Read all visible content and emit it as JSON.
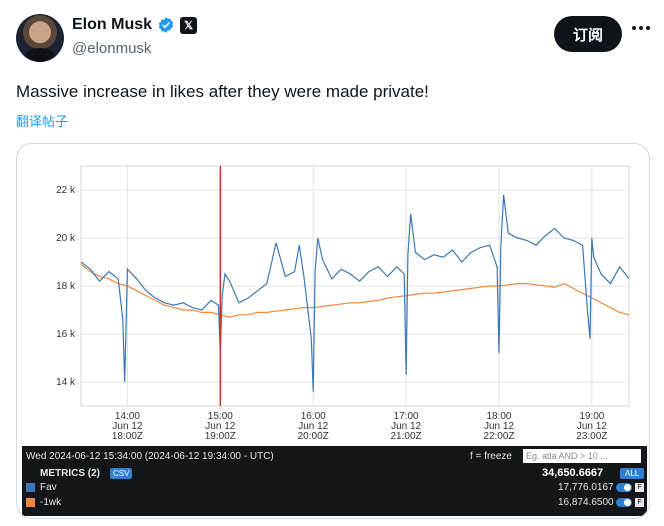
{
  "author": {
    "display_name": "Elon Musk",
    "handle": "@elonmusk",
    "verified_icon": "verified-badge-icon",
    "affiliation_icon": "x-logo-icon",
    "affiliation_badge_text": "𝕏"
  },
  "actions": {
    "follow_label": "订阅",
    "more_icon": "more-horizontal-icon"
  },
  "post": {
    "text": "Massive increase in likes after they were made private!",
    "translate_label": "翻译帖子"
  },
  "colors": {
    "fav_series": "#3a78b5",
    "prev_week_series": "#f0883e",
    "marker_line": "#c0392b",
    "follow_button_bg": "#0f1419",
    "link": "#1d9bf0"
  },
  "chart_data": {
    "type": "line",
    "ylim": [
      13000,
      23000
    ],
    "y_ticks": [
      14000,
      16000,
      18000,
      20000,
      22000
    ],
    "y_tick_labels": [
      "14 k",
      "16 k",
      "18 k",
      "20 k",
      "22 k"
    ],
    "x_ticks": [
      {
        "time": "14:00",
        "date": "Jun 12",
        "utc": "18:00Z"
      },
      {
        "time": "15:00",
        "date": "Jun 12",
        "utc": "19:00Z"
      },
      {
        "time": "16:00",
        "date": "Jun 12",
        "utc": "20:00Z"
      },
      {
        "time": "17:00",
        "date": "Jun 12",
        "utc": "21:00Z"
      },
      {
        "time": "18:00",
        "date": "Jun 12",
        "utc": "22:00Z"
      },
      {
        "time": "19:00",
        "date": "Jun 12",
        "utc": "23:00Z"
      }
    ],
    "x_range_hours": [
      13.5,
      19.4
    ],
    "marker_time_hours": 15.0,
    "grid": true,
    "series": [
      {
        "name": "Fav",
        "x": [
          13.5,
          13.6,
          13.7,
          13.8,
          13.9,
          13.95,
          13.97,
          14.0,
          14.1,
          14.2,
          14.3,
          14.4,
          14.5,
          14.6,
          14.7,
          14.8,
          14.9,
          14.98,
          15.0,
          15.02,
          15.05,
          15.1,
          15.2,
          15.3,
          15.4,
          15.5,
          15.6,
          15.7,
          15.8,
          15.85,
          15.9,
          15.98,
          16.0,
          16.02,
          16.05,
          16.1,
          16.2,
          16.3,
          16.4,
          16.5,
          16.6,
          16.7,
          16.8,
          16.9,
          16.98,
          17.0,
          17.02,
          17.05,
          17.1,
          17.2,
          17.3,
          17.4,
          17.5,
          17.6,
          17.7,
          17.8,
          17.9,
          17.98,
          18.0,
          18.02,
          18.05,
          18.1,
          18.2,
          18.3,
          18.4,
          18.5,
          18.6,
          18.7,
          18.8,
          18.9,
          18.95,
          18.98,
          19.0,
          19.02,
          19.1,
          19.2,
          19.3,
          19.4
        ],
        "values": [
          19000,
          18700,
          18200,
          18600,
          18300,
          16600,
          14000,
          18700,
          18300,
          17800,
          17500,
          17300,
          17200,
          17300,
          17100,
          17000,
          17400,
          17200,
          15200,
          17600,
          18500,
          18200,
          17300,
          17500,
          17800,
          18100,
          19800,
          18400,
          18600,
          19700,
          18400,
          15800,
          13600,
          18600,
          20000,
          19100,
          18300,
          18700,
          18500,
          18200,
          18600,
          18800,
          18400,
          18800,
          18500,
          14300,
          19300,
          21000,
          19400,
          19100,
          19300,
          19200,
          19500,
          19000,
          19400,
          19600,
          19700,
          18800,
          15200,
          19600,
          21800,
          20200,
          20000,
          19900,
          19700,
          20100,
          20400,
          20000,
          19900,
          19700,
          17100,
          15800,
          20000,
          19200,
          18500,
          18100,
          18800,
          18300
        ]
      },
      {
        "name": "-1wk",
        "x": [
          13.5,
          13.6,
          13.7,
          13.8,
          13.9,
          14.0,
          14.1,
          14.2,
          14.3,
          14.4,
          14.5,
          14.6,
          14.7,
          14.8,
          14.9,
          15.0,
          15.1,
          15.2,
          15.3,
          15.4,
          15.5,
          15.6,
          15.7,
          15.8,
          15.9,
          16.0,
          16.1,
          16.2,
          16.3,
          16.4,
          16.5,
          16.6,
          16.7,
          16.8,
          16.9,
          17.0,
          17.1,
          17.2,
          17.3,
          17.4,
          17.5,
          17.6,
          17.7,
          17.8,
          17.9,
          18.0,
          18.1,
          18.2,
          18.3,
          18.4,
          18.5,
          18.6,
          18.7,
          18.8,
          18.9,
          19.0,
          19.1,
          19.2,
          19.3,
          19.4
        ],
        "values": [
          18900,
          18600,
          18400,
          18300,
          18100,
          18000,
          17800,
          17600,
          17400,
          17200,
          17100,
          17000,
          17000,
          16900,
          16900,
          16800,
          16700,
          16800,
          16800,
          16900,
          16900,
          16950,
          17000,
          17050,
          17100,
          17100,
          17150,
          17200,
          17250,
          17300,
          17300,
          17350,
          17400,
          17500,
          17550,
          17600,
          17650,
          17700,
          17700,
          17750,
          17800,
          17850,
          17900,
          17950,
          18000,
          18000,
          18050,
          18100,
          18100,
          18050,
          18000,
          17950,
          18100,
          17900,
          17700,
          17500,
          17300,
          17100,
          16900,
          16800
        ]
      }
    ]
  },
  "metrics_panel": {
    "timestamp": "Wed 2024-06-12 15:34:00 (2024-06-12 19:34:00 - UTC)",
    "freeze_hint": "f = freeze",
    "search_placeholder": "Eg. atla AND > 10 ...",
    "metrics_title": "METRICS (2)",
    "csv_label": "CSV",
    "total_value": "34,650.6667",
    "all_label": "ALL",
    "f_label": "F",
    "rows": [
      {
        "name": "Fav",
        "value": "17,776.0167",
        "color": "#3a78b5"
      },
      {
        "name": "-1wk",
        "value": "16,874.6500",
        "color": "#f0883e"
      }
    ]
  }
}
